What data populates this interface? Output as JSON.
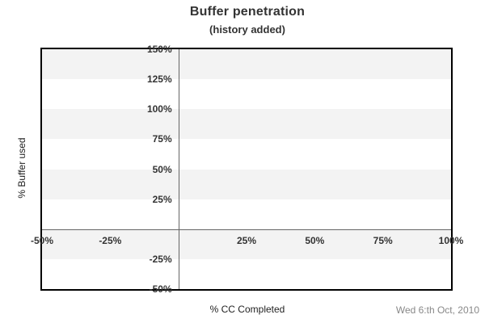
{
  "chart_data": {
    "type": "line",
    "title": "Buffer penetration",
    "subtitle": "(history added)",
    "xlabel": "% CC Completed",
    "ylabel": "% Buffer used",
    "xlim": [
      -50,
      100
    ],
    "ylim": [
      -50,
      150
    ],
    "x_ticks": [
      {
        "value": -50,
        "label": "-50%"
      },
      {
        "value": -25,
        "label": "-25%"
      },
      {
        "value": 25,
        "label": "25%"
      },
      {
        "value": 50,
        "label": "50%"
      },
      {
        "value": 75,
        "label": "75%"
      },
      {
        "value": 100,
        "label": "100%"
      }
    ],
    "y_ticks": [
      {
        "value": 150,
        "label": "150%"
      },
      {
        "value": 125,
        "label": "125%"
      },
      {
        "value": 100,
        "label": "100%"
      },
      {
        "value": 75,
        "label": "75%"
      },
      {
        "value": 50,
        "label": "50%"
      },
      {
        "value": 25,
        "label": "25%"
      },
      {
        "value": -25,
        "label": "-25%"
      },
      {
        "value": -50,
        "label": "-50%"
      }
    ],
    "series": [],
    "grid": "horizontal-bands",
    "band_step": 25,
    "zero_lines": {
      "x": 0,
      "y": 0
    },
    "legend": "none"
  },
  "colors": {
    "band": "#f3f3f3",
    "zero_line": "#666666",
    "plot_border": "#000000",
    "text": "#333333",
    "muted_text": "#888888",
    "background": "#ffffff"
  },
  "footer": {
    "date": "Wed 6:th Oct, 2010"
  }
}
